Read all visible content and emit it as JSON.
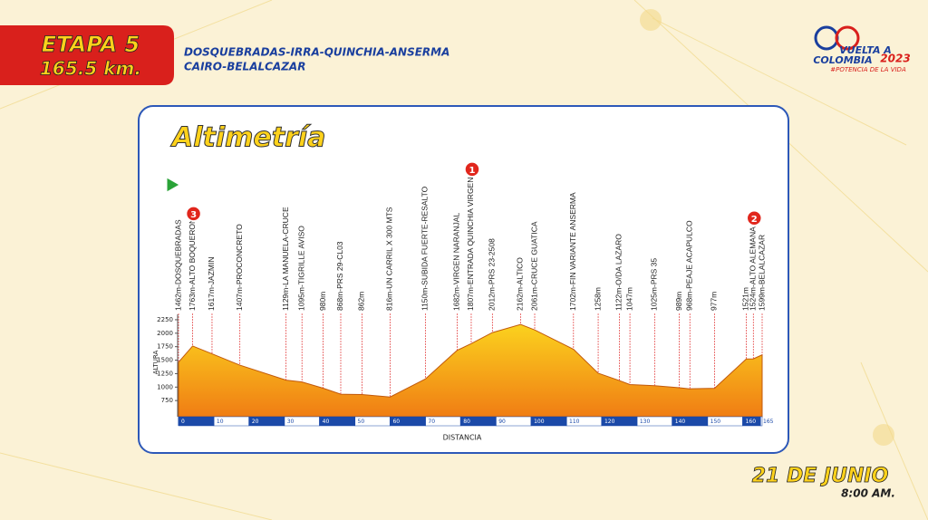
{
  "chart_data": {
    "type": "area",
    "stage": "ETAPA 5",
    "stage_distance": "165.5 km.",
    "route_line1": "DOSQUEBRADAS-IRRA-QUINCHIA-ANSERMA",
    "route_line2": "CAIRO-BELALCAZAR",
    "logo_line1": "VUELTA A",
    "logo_line2": "COLOMBIA",
    "logo_year": "2023",
    "logo_tagline": "#POTENCIA DE LA VIDA",
    "title": "Altimetría",
    "y_label": "ALTURA",
    "x_label": "DISTANCIA",
    "date": "21 DE JUNIO",
    "time": "8:00 AM.",
    "x": [
      0,
      4,
      9.5,
      17.4,
      30.5,
      35,
      41,
      46,
      52,
      60,
      70,
      79,
      83,
      89,
      97,
      101,
      112,
      119,
      125,
      128,
      135,
      142,
      145,
      152,
      161,
      163,
      165.5
    ],
    "values": [
      1462,
      1763,
      1617,
      1407,
      1129,
      1095,
      980,
      868,
      862,
      816,
      1150,
      1682,
      1807,
      2012,
      2162,
      2061,
      1702,
      1258,
      1122,
      1047,
      1025,
      989,
      968,
      977,
      1521,
      1524,
      1599
    ],
    "point_labels": [
      "1462m-DOSQUEBRADAS",
      "1763m-ALTO BOQUERON",
      "1617m-JAZMIN",
      "1407m-PROCONCRETO",
      "1129m-LA MANUELA-CRUCE",
      "1095m-TIGRILLE AVISO",
      "980m",
      "868m-PRS 29-CL03",
      "862m",
      "816m-UN CARRIL X 300 MTS",
      "1150m-SUBIDA FUERTE-RESALTO",
      "1682m-VIRGEN NARANJAL",
      "1807m-ENTRADA QUINCHIA VIRGEN",
      "2012m-PRS 23-2508",
      "2162m-ALTICO",
      "2061m-CRUCE GUATICA",
      "1702m-FIN VARIANTE ANSERMA",
      "1258m",
      "1122m-O/DA LAZARO",
      "1047m",
      "1025m-PRS 35",
      "989m",
      "968m-PEAJE ACAPULCO",
      "977m",
      "1521m",
      "1524m-ALTO ALEMANA",
      "1599m-BELALCAZAR"
    ],
    "kom_categories": [
      null,
      "3",
      null,
      null,
      null,
      null,
      null,
      null,
      null,
      null,
      null,
      null,
      "1",
      null,
      null,
      null,
      null,
      null,
      null,
      null,
      null,
      null,
      null,
      null,
      null,
      "2",
      null
    ],
    "color": "#f7a21b",
    "xlim": [
      0,
      165.5
    ],
    "ylim": [
      450,
      2350
    ],
    "xticks": [
      0,
      10,
      20,
      30,
      40,
      50,
      60,
      70,
      80,
      90,
      100,
      110,
      120,
      130,
      140,
      150,
      160,
      165
    ],
    "yticks": [
      750,
      1000,
      1250,
      1500,
      1750,
      2000,
      2250
    ]
  }
}
